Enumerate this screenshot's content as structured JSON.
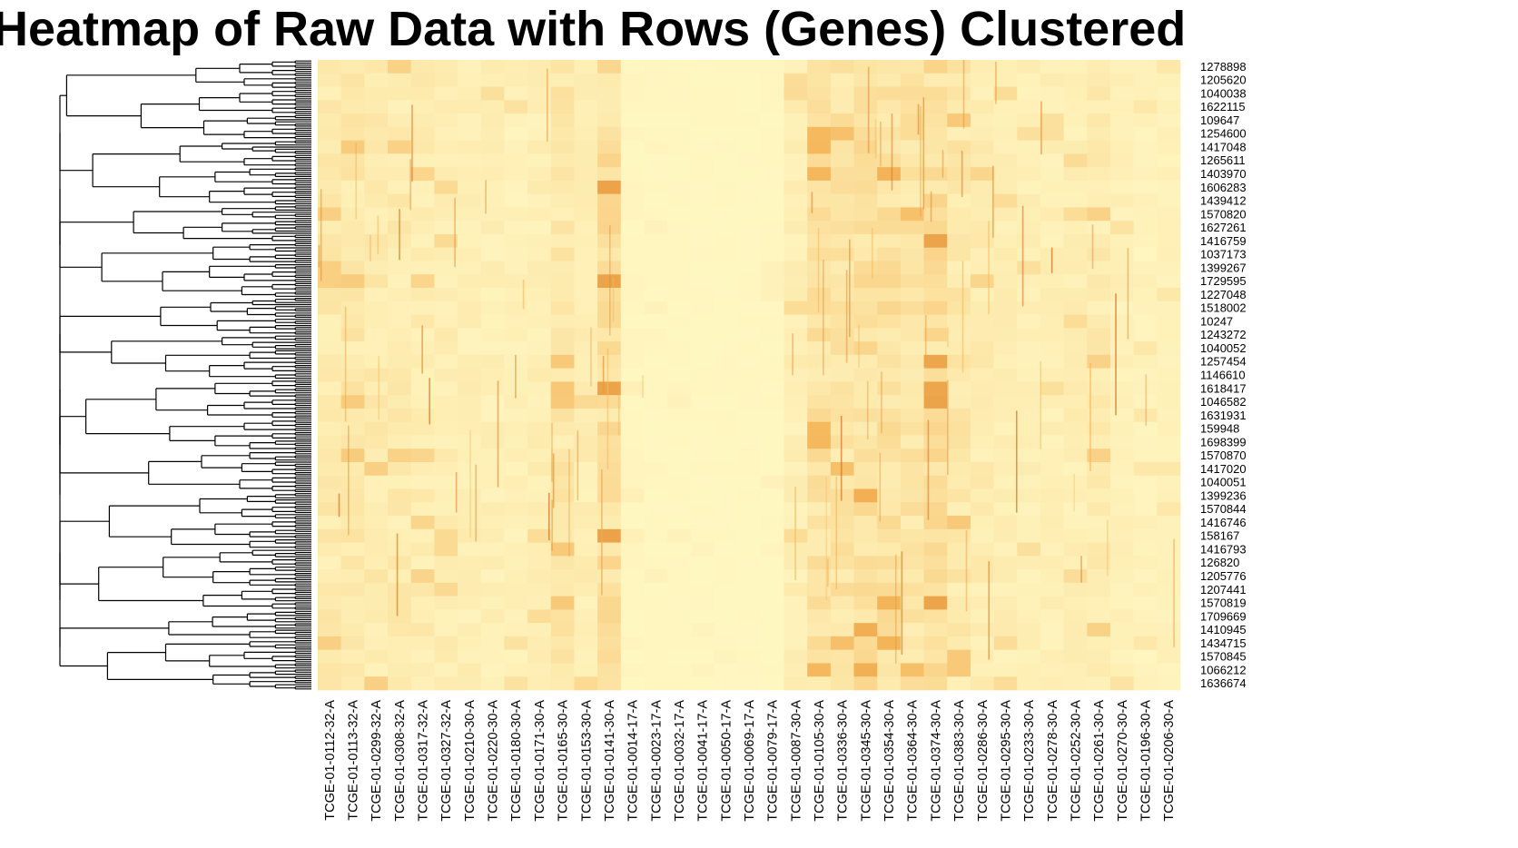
{
  "chart_data": {
    "type": "heatmap",
    "title": "Heatmap of Raw Data with Rows (Genes) Clustered",
    "row_dendrogram": true,
    "row_labels": [
      "1278898",
      "1205620",
      "1040038",
      "1622115",
      "109647",
      "1254600",
      "1417048",
      "1265611",
      "1403970",
      "1606283",
      "1439412",
      "1570820",
      "1627261",
      "1416759",
      "1037173",
      "1399267",
      "1729595",
      "1227048",
      "1518002",
      "10247",
      "1243272",
      "1040052",
      "1257454",
      "1146610",
      "1618417",
      "1046582",
      "1631931",
      "159948",
      "1698399",
      "1570870",
      "1417020",
      "1040051",
      "1399236",
      "1570844",
      "1416746",
      "158167",
      "1416793",
      "126820",
      "1205776",
      "1207441",
      "1570819",
      "1709669",
      "1410945",
      "1434715",
      "1570845",
      "1066212",
      "1636674"
    ],
    "column_labels": [
      "TCGE-01-0112-32-A",
      "TCGE-01-0113-32-A",
      "TCGE-01-0299-32-A",
      "TCGE-01-0308-32-A",
      "TCGE-01-0317-32-A",
      "TCGE-01-0327-32-A",
      "TCGE-01-0210-30-A",
      "TCGE-01-0220-30-A",
      "TCGE-01-0180-30-A",
      "TCGE-01-0171-30-A",
      "TCGE-01-0165-30-A",
      "TCGE-01-0153-30-A",
      "TCGE-01-0141-30-A",
      "TCGE-01-0014-17-A",
      "TCGE-01-0023-17-A",
      "TCGE-01-0032-17-A",
      "TCGE-01-0041-17-A",
      "TCGE-01-0050-17-A",
      "TCGE-01-0069-17-A",
      "TCGE-01-0079-17-A",
      "TCGE-01-0087-30-A",
      "TCGE-01-0105-30-A",
      "TCGE-01-0336-30-A",
      "TCGE-01-0345-30-A",
      "TCGE-01-0354-30-A",
      "TCGE-01-0364-30-A",
      "TCGE-01-0374-30-A",
      "TCGE-01-0383-30-A",
      "TCGE-01-0286-30-A",
      "TCGE-01-0295-30-A",
      "TCGE-01-0233-30-A",
      "TCGE-01-0278-30-A",
      "TCGE-01-0252-30-A",
      "TCGE-01-0261-30-A",
      "TCGE-01-0270-30-A",
      "TCGE-01-0196-30-A",
      "TCGE-01-0206-30-A"
    ],
    "color_scale": {
      "low": "#FFF7C2",
      "mid": "#F5B65A",
      "high": "#C24E00"
    },
    "column_intensity": [
      0.3,
      0.33,
      0.3,
      0.28,
      0.26,
      0.22,
      0.2,
      0.18,
      0.16,
      0.2,
      0.35,
      0.22,
      0.55,
      0.05,
      0.04,
      0.04,
      0.03,
      0.03,
      0.03,
      0.04,
      0.2,
      0.48,
      0.42,
      0.52,
      0.5,
      0.42,
      0.55,
      0.35,
      0.25,
      0.2,
      0.18,
      0.18,
      0.2,
      0.28,
      0.15,
      0.12,
      0.12
    ],
    "legend": false
  }
}
